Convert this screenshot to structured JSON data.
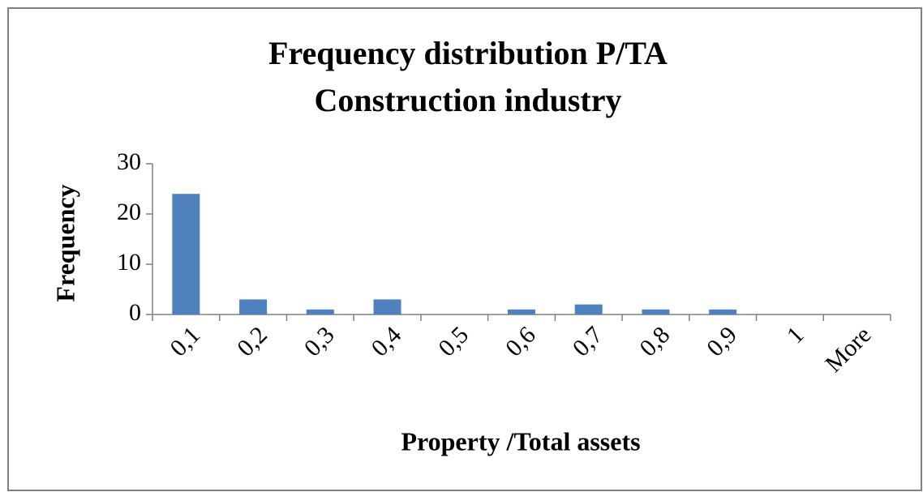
{
  "chart_data": {
    "type": "bar",
    "title": [
      "Frequency distribution P/TA",
      "Construction industry"
    ],
    "x_label": "Property /Total assets",
    "y_label": "Frequency",
    "categories": [
      "0,1",
      "0,2",
      "0,3",
      "0,4",
      "0,5",
      "0,6",
      "0,7",
      "0,8",
      "0,9",
      "1",
      "More"
    ],
    "values": [
      24,
      3,
      1,
      3,
      0,
      1,
      2,
      1,
      1,
      0,
      0
    ],
    "color": "#4f81bd",
    "ylim": [
      0,
      30
    ],
    "yticks": [
      0,
      10,
      20,
      30
    ],
    "grid": false
  }
}
